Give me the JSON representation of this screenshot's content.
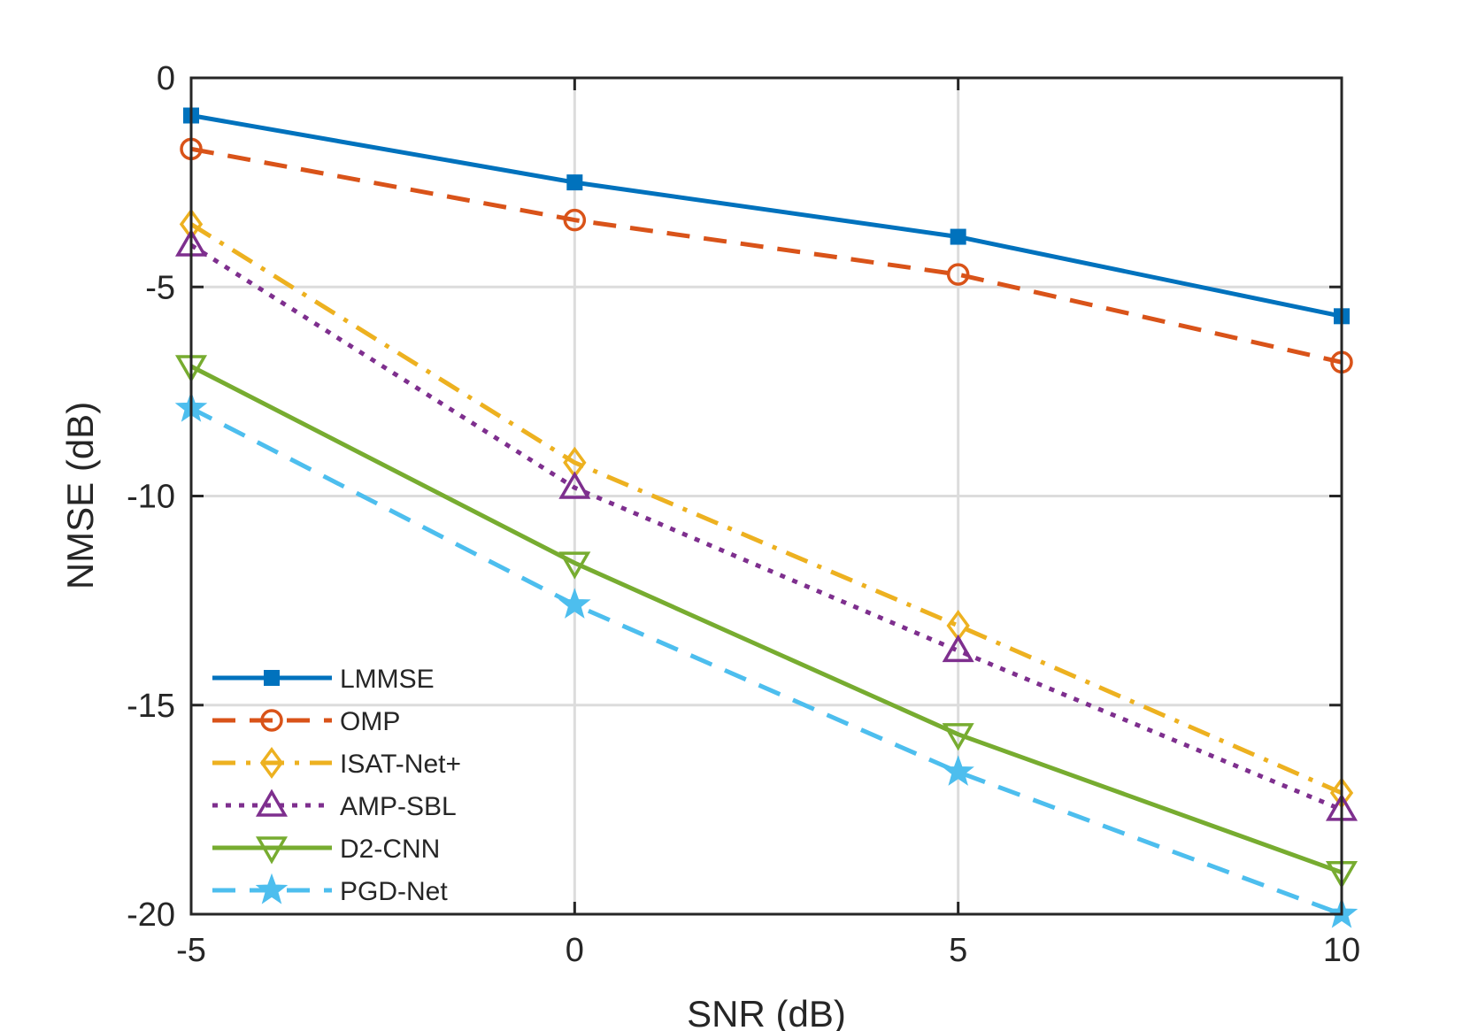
{
  "chart_data": {
    "type": "line",
    "title": "",
    "xlabel": "SNR (dB)",
    "ylabel": "NMSE (dB)",
    "xlim": [
      -5,
      10
    ],
    "ylim": [
      -20,
      0
    ],
    "xticks": [
      -5,
      0,
      5,
      10
    ],
    "yticks": [
      0,
      -5,
      -10,
      -15,
      -20
    ],
    "x_tick_labels": [
      "-5",
      "0",
      "5",
      "10"
    ],
    "y_tick_labels": [
      "0",
      "-5",
      "-10",
      "-15",
      "-20"
    ],
    "grid": true,
    "legend_position": "bottom-left",
    "x": [
      -5,
      0,
      5,
      10
    ],
    "series": [
      {
        "name": "LMMSE",
        "values": [
          -0.9,
          -2.5,
          -3.8,
          -5.7
        ],
        "color": "#0072BD",
        "dash": "solid",
        "marker": "square"
      },
      {
        "name": "OMP",
        "values": [
          -1.7,
          -3.4,
          -4.7,
          -6.8
        ],
        "color": "#D95319",
        "dash": "dashed",
        "marker": "circle"
      },
      {
        "name": "ISAT-Net+",
        "values": [
          -3.5,
          -9.2,
          -13.1,
          -17.1
        ],
        "color": "#EDB120",
        "dash": "dashdot",
        "marker": "diamond"
      },
      {
        "name": "AMP-SBL",
        "values": [
          -4.0,
          -9.8,
          -13.7,
          -17.5
        ],
        "color": "#7E2F8E",
        "dash": "dotted",
        "marker": "triangle-up"
      },
      {
        "name": "D2-CNN",
        "values": [
          -6.9,
          -11.6,
          -15.7,
          -19.0
        ],
        "color": "#77AC30",
        "dash": "solid",
        "marker": "triangle-down"
      },
      {
        "name": "PGD-Net",
        "values": [
          -7.9,
          -12.6,
          -16.6,
          -20.0
        ],
        "color": "#4DBEEE",
        "dash": "dashed",
        "marker": "star"
      }
    ]
  }
}
